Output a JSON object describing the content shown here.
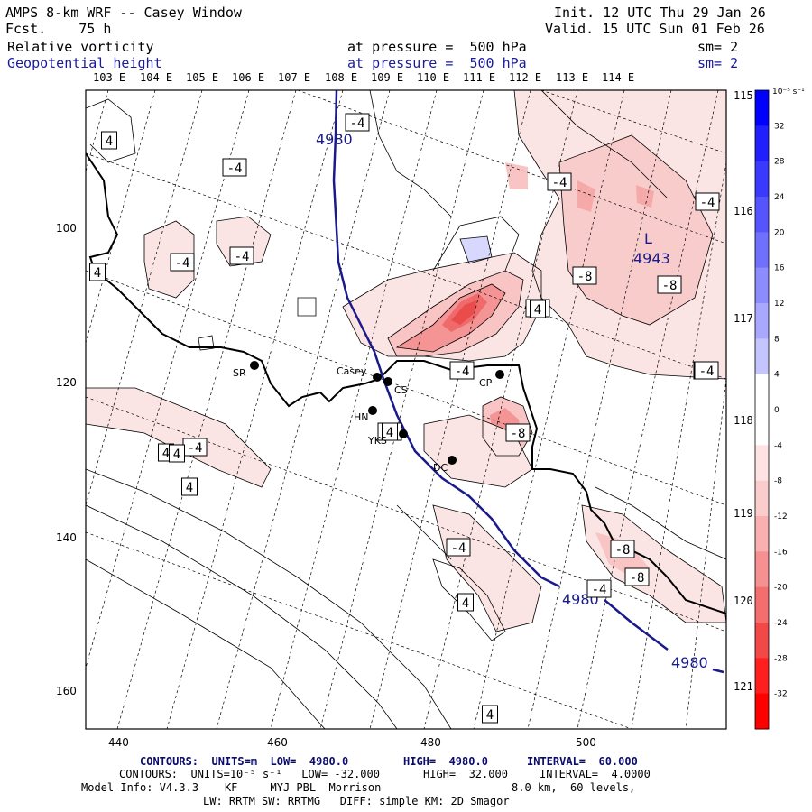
{
  "header": {
    "title": "AMPS 8-km WRF -- Casey Window",
    "forecast": "Fcst.    75 h",
    "init": "Init. 12 UTC Thu 29 Jan 26",
    "valid": "Valid. 15 UTC Sun 01 Feb 26",
    "field1_name": "Relative vorticity",
    "field1_level": "at pressure =  500 hPa",
    "field1_sm": "sm= 2",
    "field2_name": "Geopotential height",
    "field2_level": "at pressure =  500 hPa",
    "field2_sm": "sm= 2"
  },
  "axes": {
    "top_lon_labels": [
      "103 E",
      "104 E",
      "105 E",
      "106 E",
      "107 E",
      "108 E",
      "109 E",
      "110 E",
      "111 E",
      "112 E",
      "113 E",
      "114 E"
    ],
    "right_lon_labels": [
      "115 E",
      "116 E",
      "117 E",
      "118 E",
      "119 E",
      "120 E",
      "121 E"
    ],
    "x_ticks": [
      "440",
      "460",
      "480",
      "500"
    ],
    "y_ticks": [
      "100",
      "120",
      "140",
      "160"
    ]
  },
  "colorbar": {
    "units": "10⁻⁵ s⁻¹",
    "labels": [
      "32",
      "28",
      "24",
      "20",
      "16",
      "12",
      "8",
      "4",
      "0",
      "-4",
      "-8",
      "-12",
      "-16",
      "-20",
      "-24",
      "-28",
      "-32"
    ],
    "colors": [
      "#0000ff",
      "#2020ff",
      "#3a3aff",
      "#5555ff",
      "#7070ff",
      "#8c8cff",
      "#a8a8ff",
      "#c4c4ff",
      "#ffffff",
      "#ffffff",
      "#fde3e3",
      "#fbcccc",
      "#f9b0b0",
      "#f79090",
      "#f56d6d",
      "#f34848",
      "#ff1f1f",
      "#ff0000"
    ]
  },
  "stations": [
    {
      "name": "SR"
    },
    {
      "name": "Casey"
    },
    {
      "name": "CS"
    },
    {
      "name": "HN"
    },
    {
      "name": "YKS"
    },
    {
      "name": "DC"
    },
    {
      "name": "CP"
    }
  ],
  "contour_labels": [
    "4",
    "-4",
    "-4",
    "-4",
    "-4",
    "4",
    "-4",
    "-4",
    "-8",
    "-8",
    "-4",
    "-4",
    "-4",
    "-4",
    "-8",
    "4",
    "-4",
    "4",
    "4",
    "-4",
    "-8",
    "-8",
    "4",
    "-4",
    "4",
    "-4",
    "4",
    "4"
  ],
  "height_labels": [
    "4980",
    "4943",
    "4980",
    "4980"
  ],
  "low_marker": "L",
  "footer": {
    "line1_a": "CONTOURS:  UNITS=m  LOW=  4980.0",
    "line1_b": "HIGH=  4980.0",
    "line1_c": "INTERVAL=  60.000",
    "line2_a": "CONTOURS:  UNITS=10⁻⁵ s⁻¹   LOW= -32.000",
    "line2_b": "HIGH=  32.000",
    "line2_c": "INTERVAL=  4.0000",
    "line3_a": "Model Info: V4.3.3    KF     MYJ PBL  Morrison",
    "line3_b": "8.0 km,  60 levels,",
    "line4": "LW: RRTM SW: RRTMG   DIFF: simple KM: 2D Smagor"
  }
}
